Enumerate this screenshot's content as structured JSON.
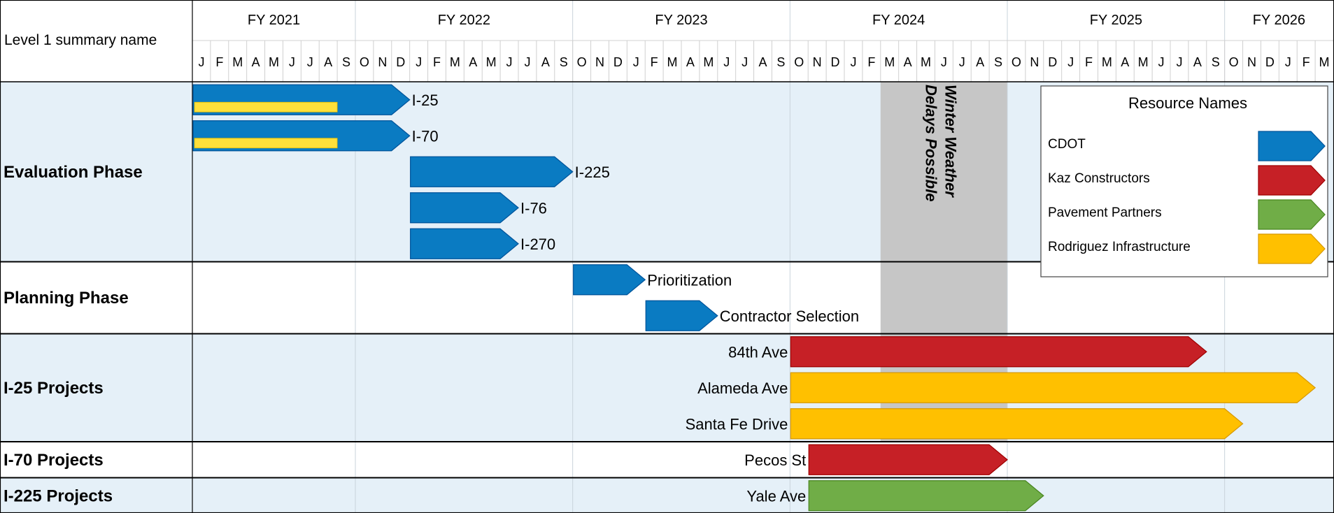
{
  "header_label": "Level 1 summary name",
  "fiscal_years": [
    "FY 2021",
    "FY 2022",
    "FY 2023",
    "FY 2024",
    "FY 2025",
    "FY 2026"
  ],
  "month_letters": [
    "J",
    "F",
    "M",
    "A",
    "M",
    "J",
    "J",
    "A",
    "S",
    "O",
    "N",
    "D",
    "J",
    "F",
    "M",
    "A",
    "M",
    "J",
    "J",
    "A",
    "S",
    "O",
    "N",
    "D",
    "J",
    "F",
    "M",
    "A",
    "M",
    "J",
    "J",
    "A",
    "S",
    "O",
    "N",
    "D",
    "J",
    "F",
    "M",
    "A",
    "M",
    "J",
    "J",
    "A",
    "S",
    "O",
    "N",
    "D",
    "J",
    "F",
    "M",
    "A",
    "M",
    "J",
    "J",
    "A",
    "S",
    "O",
    "N",
    "D",
    "J",
    "F",
    "M"
  ],
  "phases": [
    {
      "name": "Evaluation Phase",
      "start_row": 0,
      "rows": 5
    },
    {
      "name": "Planning Phase",
      "start_row": 5,
      "rows": 2
    },
    {
      "name": "I-25 Projects",
      "start_row": 7,
      "rows": 3
    },
    {
      "name": "I-70 Projects",
      "start_row": 10,
      "rows": 1
    },
    {
      "name": "I-225 Projects",
      "start_row": 11,
      "rows": 1
    }
  ],
  "annotation": {
    "line1": "Winter Weather",
    "line2": "Delays Possible",
    "start": "2024-03",
    "end": "2024-10"
  },
  "legend": {
    "title": "Resource Names",
    "items": [
      {
        "name": "CDOT",
        "color": "#0A7BC2"
      },
      {
        "name": "Kaz Constructors",
        "color": "#C62026"
      },
      {
        "name": "Pavement Partners",
        "color": "#70AD47"
      },
      {
        "name": "Rodriguez Infrastructure",
        "color": "#FFC000"
      }
    ]
  },
  "chart_data": {
    "type": "gantt",
    "time_axis": {
      "start": "2021-01",
      "end": "2026-03",
      "unit": "month"
    },
    "tasks": [
      {
        "name": "I-25",
        "row": 0,
        "start": "2021-01",
        "end": "2022-01",
        "resource": "CDOT",
        "label_side": "right",
        "progress_end": "2021-09"
      },
      {
        "name": "I-70",
        "row": 1,
        "start": "2021-01",
        "end": "2022-01",
        "resource": "CDOT",
        "label_side": "right",
        "progress_end": "2021-09"
      },
      {
        "name": "I-225",
        "row": 2,
        "start": "2022-01",
        "end": "2022-10",
        "resource": "CDOT",
        "label_side": "right"
      },
      {
        "name": "I-76",
        "row": 3,
        "start": "2022-01",
        "end": "2022-07",
        "resource": "CDOT",
        "label_side": "right"
      },
      {
        "name": "I-270",
        "row": 4,
        "start": "2022-01",
        "end": "2022-07",
        "resource": "CDOT",
        "label_side": "right"
      },
      {
        "name": "Prioritization",
        "row": 5,
        "start": "2022-10",
        "end": "2023-02",
        "resource": "CDOT",
        "label_side": "right"
      },
      {
        "name": "Contractor Selection",
        "row": 6,
        "start": "2023-02",
        "end": "2023-06",
        "resource": "CDOT",
        "label_side": "right"
      },
      {
        "name": "84th Ave",
        "row": 7,
        "start": "2023-10",
        "end": "2025-09",
        "resource": "Kaz Constructors",
        "label_side": "left"
      },
      {
        "name": "Alameda Ave",
        "row": 8,
        "start": "2023-10",
        "end": "2026-03",
        "resource": "Rodriguez Infrastructure",
        "label_side": "left"
      },
      {
        "name": "Santa Fe Drive",
        "row": 9,
        "start": "2023-10",
        "end": "2025-11",
        "resource": "Rodriguez Infrastructure",
        "label_side": "left"
      },
      {
        "name": "Pecos St",
        "row": 10,
        "start": "2023-11",
        "end": "2024-10",
        "resource": "Kaz Constructors",
        "label_side": "left"
      },
      {
        "name": "Yale Ave",
        "row": 11,
        "start": "2023-11",
        "end": "2024-12",
        "resource": "Pavement Partners",
        "label_side": "left"
      }
    ]
  }
}
